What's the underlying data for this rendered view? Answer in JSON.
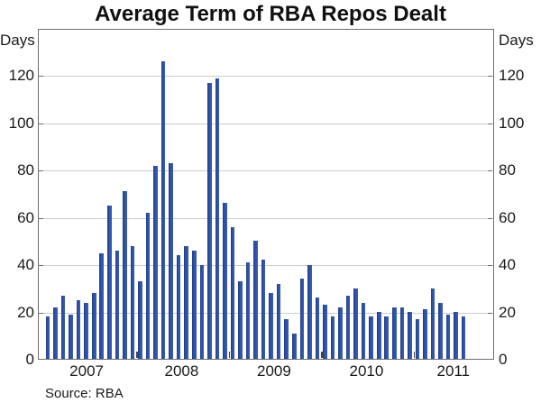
{
  "title": "Average Term of RBA Repos Dealt",
  "left_axis_title": "Days",
  "right_axis_title": "Days",
  "source_note": "Source: RBA",
  "colors": {
    "bar": "#2e51a8",
    "bar_edge": "#1e3c85",
    "gridline": "#cccccc",
    "frame": "#6e6e6e",
    "text": "#1a1a1a"
  },
  "chart_data": {
    "type": "bar",
    "title": "Average Term of RBA Repos Dealt",
    "ylabel_left": "Days",
    "ylabel_right": "Days",
    "frequency": "monthly",
    "grid": "horizontal",
    "legend": "none",
    "ylim": [
      0,
      140
    ],
    "y_ticks": [
      0,
      20,
      40,
      60,
      80,
      100,
      120
    ],
    "x_tick_labels": [
      "2007",
      "2008",
      "2009",
      "2010",
      "2011"
    ],
    "source": "Source: RBA",
    "months": [
      "Jan 2007",
      "Feb 2007",
      "Mar 2007",
      "Apr 2007",
      "May 2007",
      "Jun 2007",
      "Jul 2007",
      "Aug 2007",
      "Sep 2007",
      "Oct 2007",
      "Nov 2007",
      "Dec 2007",
      "Jan 2008",
      "Feb 2008",
      "Mar 2008",
      "Apr 2008",
      "May 2008",
      "Jun 2008",
      "Jul 2008",
      "Aug 2008",
      "Sep 2008",
      "Oct 2008",
      "Nov 2008",
      "Dec 2008",
      "Jan 2009",
      "Feb 2009",
      "Mar 2009",
      "Apr 2009",
      "May 2009",
      "Jun 2009",
      "Jul 2009",
      "Aug 2009",
      "Sep 2009",
      "Oct 2009",
      "Nov 2009",
      "Dec 2009",
      "Jan 2010",
      "Feb 2010",
      "Mar 2010",
      "Apr 2010",
      "May 2010",
      "Jun 2010",
      "Jul 2010",
      "Aug 2010",
      "Sep 2010",
      "Oct 2010",
      "Nov 2010",
      "Dec 2010",
      "Jan 2011",
      "Feb 2011",
      "Mar 2011",
      "Apr 2011",
      "May 2011",
      "Jun 2011",
      "Jul 2011"
    ],
    "series": [
      {
        "name": "Average term of RBA repos dealt (days)",
        "values": [
          18,
          22,
          27,
          19,
          25,
          24,
          28,
          45,
          65,
          46,
          71,
          48,
          33,
          62,
          82,
          126,
          83,
          44,
          48,
          46,
          40,
          117,
          119,
          66,
          56,
          33,
          41,
          50,
          42,
          28,
          32,
          17,
          11,
          34,
          40,
          26,
          23,
          18,
          22,
          27,
          30,
          24,
          18,
          20,
          18,
          22,
          22,
          20,
          17,
          21,
          30,
          24,
          19,
          20,
          18
        ]
      }
    ]
  }
}
